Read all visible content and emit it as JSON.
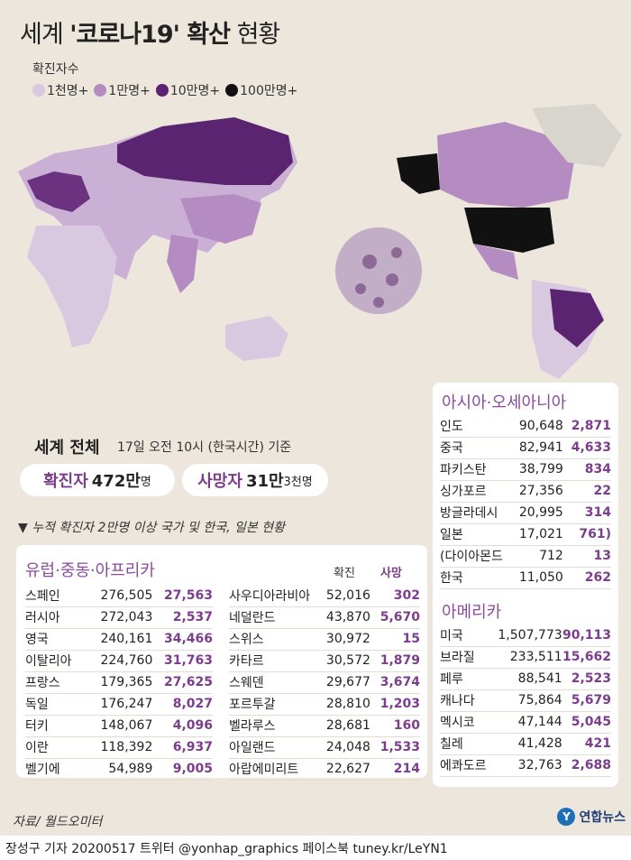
{
  "title": {
    "prefix": "세계 ",
    "bold": "'코로나19' 확산",
    "suffix": " 현황"
  },
  "legend": {
    "title": "확진자수",
    "items": [
      {
        "label": "1천명+",
        "color": "#d8c8e0"
      },
      {
        "label": "1만명+",
        "color": "#b58cc2"
      },
      {
        "label": "10만명+",
        "color": "#5a2470"
      },
      {
        "label": "100만명+",
        "color": "#111111"
      }
    ]
  },
  "world": {
    "title": "세계 전체",
    "subtitle": "17일 오전 10시 (한국시간) 기준",
    "confirmed": {
      "label": "확진자",
      "value": "472만",
      "unit": "명"
    },
    "deaths": {
      "label": "사망자",
      "value": "31만",
      "unit": "3천명"
    }
  },
  "note": "▼ 누적 확진자 2만명 이상 국가 및 한국, 일본 현황",
  "europe": {
    "title": "유럽·중동·아프리카",
    "col_confirmed": "확진",
    "col_deaths": "사망",
    "left": [
      [
        "스페인",
        "276,505",
        "27,563"
      ],
      [
        "러시아",
        "272,043",
        "2,537"
      ],
      [
        "영국",
        "240,161",
        "34,466"
      ],
      [
        "이탈리아",
        "224,760",
        "31,763"
      ],
      [
        "프랑스",
        "179,365",
        "27,625"
      ],
      [
        "독일",
        "176,247",
        "8,027"
      ],
      [
        "터키",
        "148,067",
        "4,096"
      ],
      [
        "이란",
        "118,392",
        "6,937"
      ],
      [
        "벨기에",
        "54,989",
        "9,005"
      ]
    ],
    "right": [
      [
        "사우디아라비아",
        "52,016",
        "302"
      ],
      [
        "네덜란드",
        "43,870",
        "5,670"
      ],
      [
        "스위스",
        "30,972",
        "15"
      ],
      [
        "카타르",
        "30,572",
        "1,879"
      ],
      [
        "스웨덴",
        "29,677",
        "3,674"
      ],
      [
        "포르투갈",
        "28,810",
        "1,203"
      ],
      [
        "벨라루스",
        "28,681",
        "160"
      ],
      [
        "아일랜드",
        "24,048",
        "1,533"
      ],
      [
        "아랍에미리트",
        "22,627",
        "214"
      ]
    ]
  },
  "asia": {
    "title": "아시아·오세아니아",
    "rows": [
      [
        "인도",
        "90,648",
        "2,871"
      ],
      [
        "중국",
        "82,941",
        "4,633"
      ],
      [
        "파키스탄",
        "38,799",
        "834"
      ],
      [
        "싱가포르",
        "27,356",
        "22"
      ],
      [
        "방글라데시",
        "20,995",
        "314"
      ],
      [
        "일본",
        "17,021",
        "761)"
      ],
      [
        "(다이아몬드",
        "712",
        "13"
      ],
      [
        "한국",
        "11,050",
        "262"
      ]
    ]
  },
  "america": {
    "title": "아메리카",
    "rows": [
      [
        "미국",
        "1,507,773",
        "90,113"
      ],
      [
        "브라질",
        "233,511",
        "15,662"
      ],
      [
        "페루",
        "88,541",
        "2,523"
      ],
      [
        "캐나다",
        "75,864",
        "5,679"
      ],
      [
        "멕시코",
        "47,144",
        "5,045"
      ],
      [
        "칠레",
        "41,428",
        "421"
      ],
      [
        "에콰도르",
        "32,763",
        "2,688"
      ]
    ]
  },
  "source": "자료/ 월드오미터",
  "logo": "연합뉴스",
  "footer": "장성구 기자  20200517  트위터 @yonhap_graphics  페이스북 tuney.kr/LeYN1"
}
